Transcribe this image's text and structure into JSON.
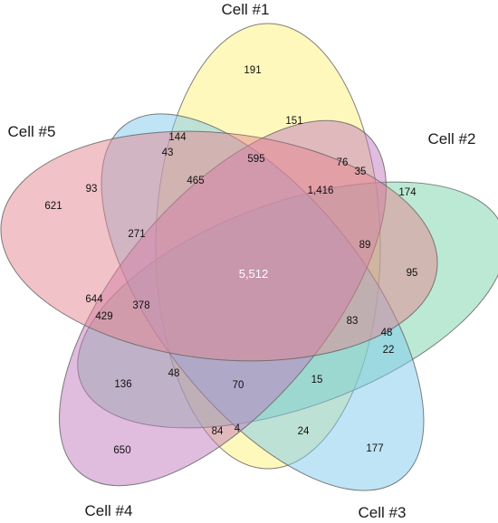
{
  "sets": [
    {
      "name": "Cell #1",
      "color": "#fff27a"
    },
    {
      "name": "Cell #2",
      "color": "#79d4a7"
    },
    {
      "name": "Cell #3",
      "color": "#7ec9ee"
    },
    {
      "name": "Cell #4",
      "color": "#c179bd"
    },
    {
      "name": "Cell #5",
      "color": "#e3868f"
    }
  ],
  "regions": [
    {
      "label": "191"
    },
    {
      "label": "151"
    },
    {
      "label": "144"
    },
    {
      "label": "43"
    },
    {
      "label": "595"
    },
    {
      "label": "76"
    },
    {
      "label": "35"
    },
    {
      "label": "174"
    },
    {
      "label": "93"
    },
    {
      "label": "465"
    },
    {
      "label": "1,416"
    },
    {
      "label": "621"
    },
    {
      "label": "271"
    },
    {
      "label": "89"
    },
    {
      "label": "95"
    },
    {
      "label": "5,512"
    },
    {
      "label": "644"
    },
    {
      "label": "378"
    },
    {
      "label": "429"
    },
    {
      "label": "83"
    },
    {
      "label": "48"
    },
    {
      "label": "22"
    },
    {
      "label": "136"
    },
    {
      "label": "48"
    },
    {
      "label": "70"
    },
    {
      "label": "15"
    },
    {
      "label": "84"
    },
    {
      "label": "4"
    },
    {
      "label": "24"
    },
    {
      "label": "650"
    },
    {
      "label": "177"
    }
  ]
}
